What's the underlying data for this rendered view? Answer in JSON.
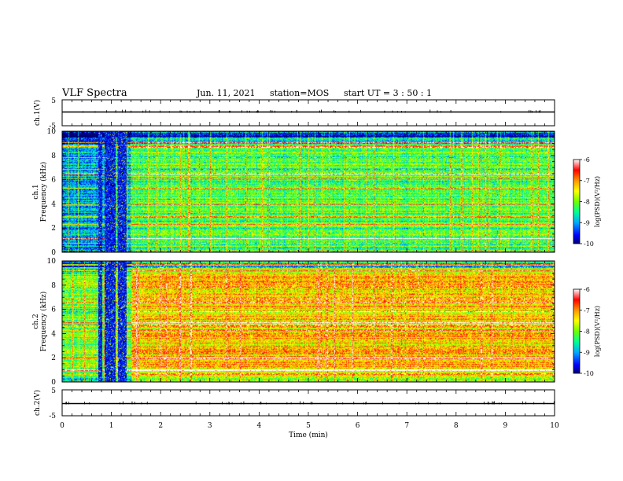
{
  "header": {
    "title": "VLF Spectra",
    "date": "Jun. 11, 2021",
    "station": "station=MOS",
    "start_ut": "start  UT  =   3 : 50 : 1"
  },
  "panels": {
    "ch1_waveform_label": "ch.1(V)",
    "ch1_spec_label": "ch.1",
    "ch2_spec_label": "ch.2",
    "ch2_waveform_label": "ch.2(V)",
    "freq_label": "Frequency (kHz)",
    "xlabel": "Time (min)",
    "colorbar_label": "log(PSD)(V²/Hz)"
  },
  "colors": {
    "spectrum_scale": [
      "#000080",
      "#0000ff",
      "#00bfff",
      "#00ff80",
      "#80ff00",
      "#ffff00",
      "#ff8000",
      "#ff0000",
      "#ffffff"
    ]
  },
  "chart_data": [
    {
      "type": "line",
      "name": "ch1-waveform",
      "ylabel": "ch.1(V)",
      "ylim": [
        -5,
        5
      ],
      "yticks": [
        "5",
        "-5"
      ],
      "xlim": [
        0,
        10
      ],
      "x": [
        0,
        10
      ],
      "values": [
        0.3,
        0.3
      ]
    },
    {
      "type": "heatmap",
      "name": "ch1-spectrogram",
      "ylabel": "Frequency (kHz)",
      "ylim": [
        0,
        10
      ],
      "yticks": [
        "0",
        "2",
        "4",
        "6",
        "8",
        "10"
      ],
      "xlim": [
        0,
        10
      ],
      "colorbar": {
        "range": [
          -10,
          -6
        ],
        "ticks": [
          "-6",
          "-7",
          "-8",
          "-9",
          "-10"
        ]
      },
      "quiet_interval_min": [
        0.6,
        1.4
      ],
      "dominant_level": -8.2
    },
    {
      "type": "heatmap",
      "name": "ch2-spectrogram",
      "ylabel": "Frequency (kHz)",
      "ylim": [
        0,
        10
      ],
      "yticks": [
        "0",
        "2",
        "4",
        "6",
        "8",
        "10"
      ],
      "xlim": [
        0,
        10
      ],
      "colorbar": {
        "range": [
          -10,
          -6
        ],
        "ticks": [
          "-6",
          "-7",
          "-8",
          "-9",
          "-10"
        ]
      },
      "quiet_interval_min": [
        0.6,
        1.4
      ],
      "dominant_level": -7.3
    },
    {
      "type": "line",
      "name": "ch2-waveform",
      "ylabel": "ch.2(V)",
      "ylim": [
        -5,
        5
      ],
      "yticks": [
        "5",
        "-5"
      ],
      "xlim": [
        0,
        10
      ],
      "x": [
        0,
        10
      ],
      "values": [
        -0.3,
        -0.3
      ]
    }
  ],
  "xaxis": {
    "xlabel": "Time (min)",
    "ticks": [
      "0",
      "1",
      "2",
      "3",
      "4",
      "5",
      "6",
      "7",
      "8",
      "9",
      "10"
    ]
  }
}
